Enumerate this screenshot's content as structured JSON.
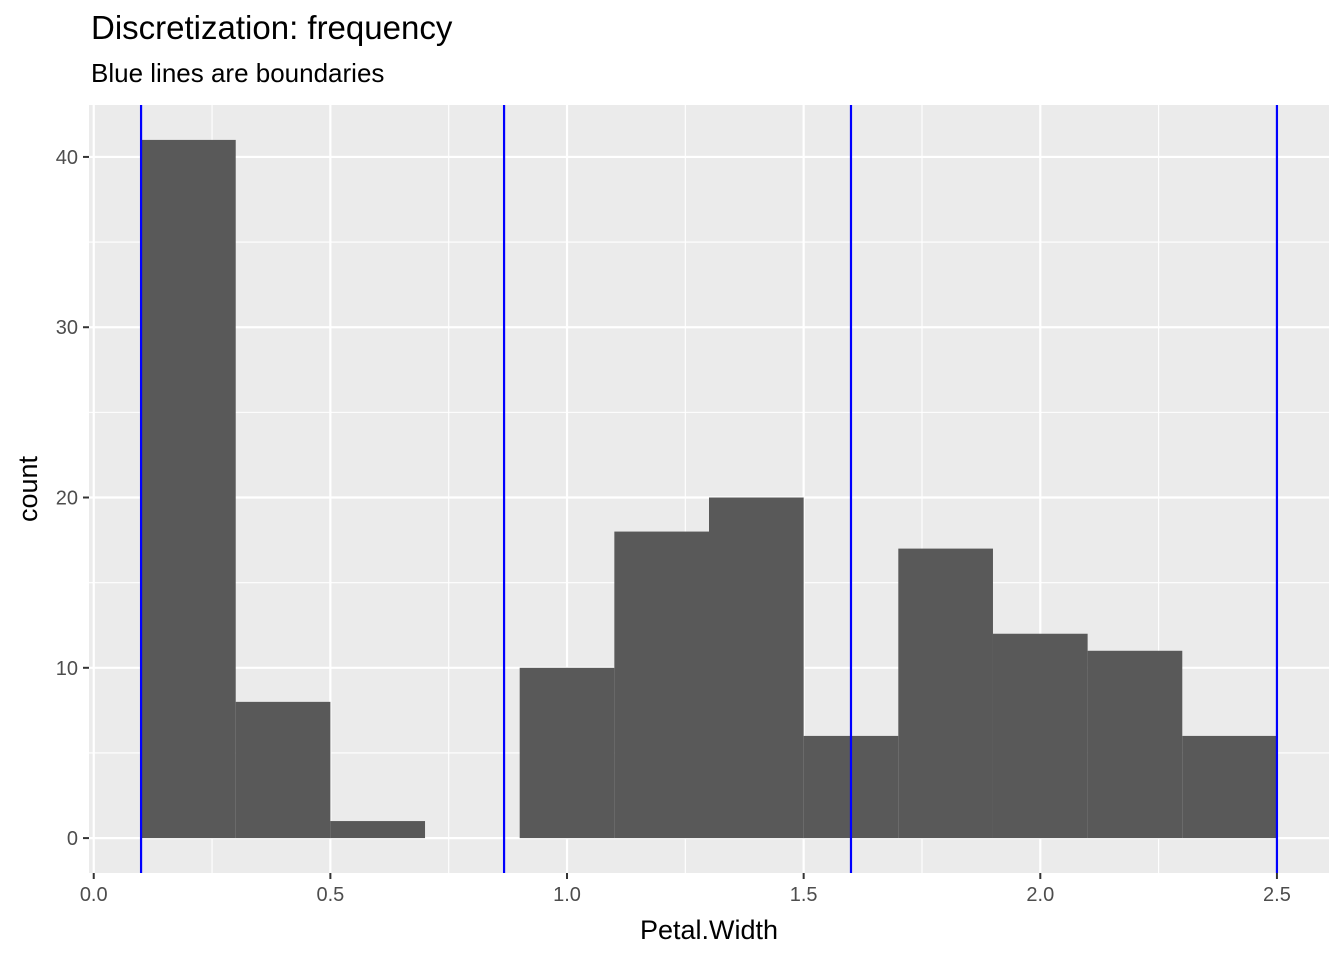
{
  "chart_data": {
    "type": "bar",
    "title": "Discretization: frequency",
    "subtitle": "Blue lines are boundaries",
    "xlabel": "Petal.Width",
    "ylabel": "count",
    "xlim": [
      -0.01,
      2.61
    ],
    "ylim": [
      -2.05,
      43.05
    ],
    "x_ticks": [
      0.0,
      0.5,
      1.0,
      1.5,
      2.0,
      2.5
    ],
    "x_tick_labels": [
      "0.0",
      "0.5",
      "1.0",
      "1.5",
      "2.0",
      "2.5"
    ],
    "y_ticks": [
      0,
      10,
      20,
      30,
      40
    ],
    "y_tick_labels": [
      "0",
      "10",
      "20",
      "30",
      "40"
    ],
    "bins": [
      {
        "x0": 0.1,
        "x1": 0.3,
        "count": 41
      },
      {
        "x0": 0.3,
        "x1": 0.5,
        "count": 8
      },
      {
        "x0": 0.5,
        "x1": 0.7,
        "count": 1
      },
      {
        "x0": 0.7,
        "x1": 0.9,
        "count": 0
      },
      {
        "x0": 0.9,
        "x1": 1.1,
        "count": 10
      },
      {
        "x0": 1.1,
        "x1": 1.3,
        "count": 18
      },
      {
        "x0": 1.3,
        "x1": 1.5,
        "count": 20
      },
      {
        "x0": 1.5,
        "x1": 1.7,
        "count": 6
      },
      {
        "x0": 1.7,
        "x1": 1.9,
        "count": 17
      },
      {
        "x0": 1.9,
        "x1": 2.1,
        "count": 12
      },
      {
        "x0": 2.1,
        "x1": 2.3,
        "count": 11
      },
      {
        "x0": 2.3,
        "x1": 2.5,
        "count": 6
      }
    ],
    "boundaries": [
      0.1,
      0.867,
      1.6,
      2.5
    ],
    "grid": true,
    "colors": {
      "bar_fill": "#595959",
      "panel_background": "#ebebeb",
      "grid_major": "#ffffff",
      "boundary_line": "#0000ff"
    }
  }
}
